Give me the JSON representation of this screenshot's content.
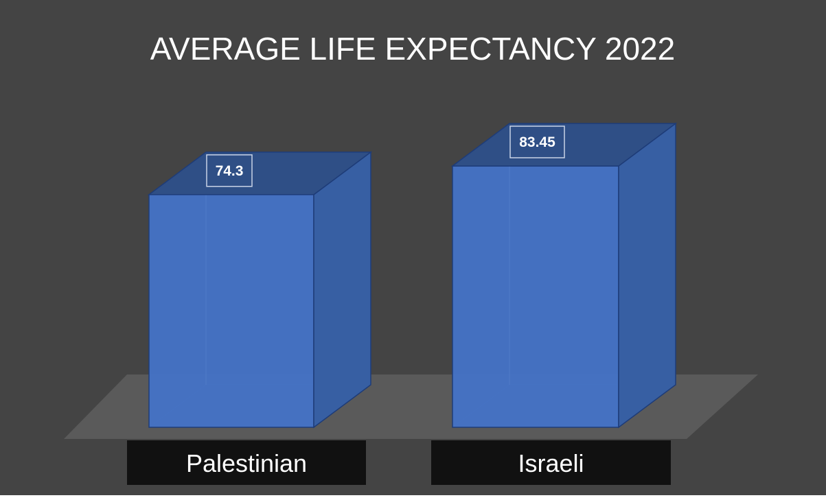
{
  "chart_data": {
    "type": "bar",
    "title": "AVERAGE LIFE EXPECTANCY 2022",
    "categories": [
      "Palestinian",
      "Israeli"
    ],
    "values": [
      74.3,
      83.45
    ],
    "data_labels": [
      "74.3",
      "83.45"
    ],
    "style": "3d-column",
    "legend": "none",
    "grid": false
  },
  "colors": {
    "background": "#444444",
    "floor": "#5a5a5a",
    "bar_front": "#4472c4",
    "bar_side": "#375fa3",
    "bar_top": "#2f4f86",
    "bar_edge": "#1e3c78",
    "category_box": "#111111",
    "text": "#ffffff"
  }
}
